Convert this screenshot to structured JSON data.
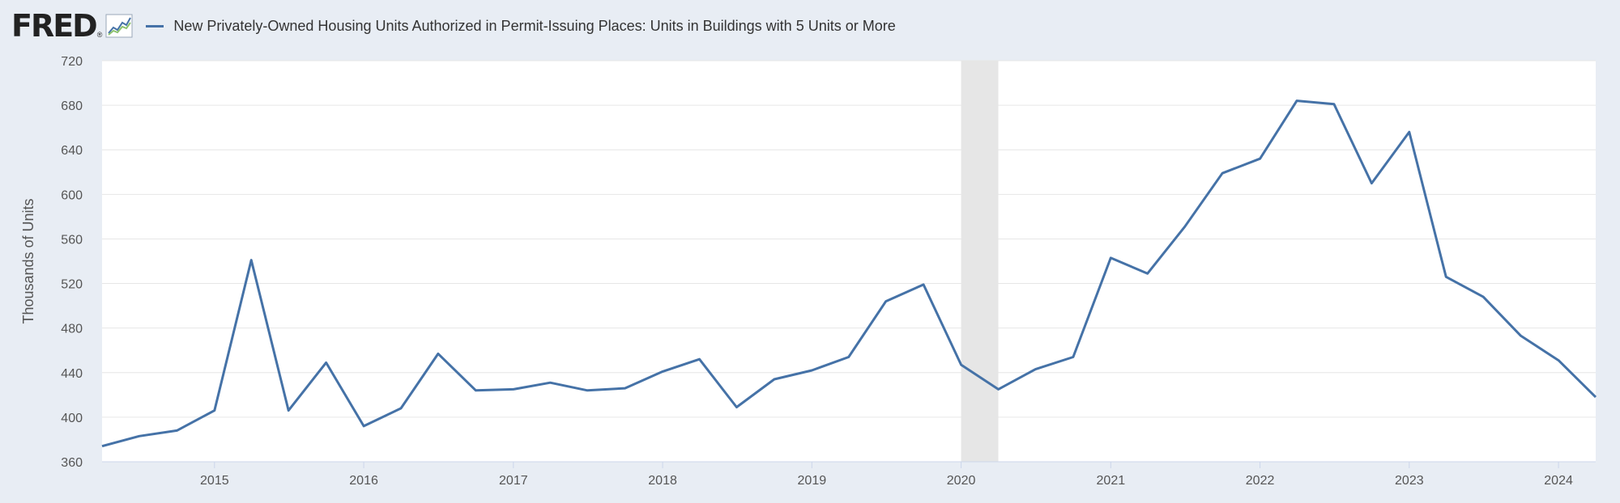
{
  "logo": {
    "text": "FRED",
    "registered": "®"
  },
  "chart_data": {
    "type": "line",
    "title": "",
    "ylabel": "Thousands of Units",
    "xlabel": "",
    "ylim": [
      360,
      720
    ],
    "xlim": [
      "2014-04-01",
      "2024-04-01"
    ],
    "yticks": [
      360,
      400,
      440,
      480,
      520,
      560,
      600,
      640,
      680,
      720
    ],
    "xticks": [
      "2015",
      "2016",
      "2017",
      "2018",
      "2019",
      "2020",
      "2021",
      "2022",
      "2023",
      "2024"
    ],
    "grid": "horizontal",
    "legend_position": "top-left",
    "line_color": "#4572a7",
    "recession_color": "#e6e6e6",
    "recessions": [
      [
        "2020-01-01",
        "2020-04-01"
      ]
    ],
    "series": [
      {
        "name": "New Privately-Owned Housing Units Authorized in Permit-Issuing Places: Units in Buildings with 5 Units or More",
        "x": [
          "2014-04-01",
          "2014-07-01",
          "2014-10-01",
          "2015-01-01",
          "2015-04-01",
          "2015-07-01",
          "2015-10-01",
          "2016-01-01",
          "2016-04-01",
          "2016-07-01",
          "2016-10-01",
          "2017-01-01",
          "2017-04-01",
          "2017-07-01",
          "2017-10-01",
          "2018-01-01",
          "2018-04-01",
          "2018-07-01",
          "2018-10-01",
          "2019-01-01",
          "2019-04-01",
          "2019-07-01",
          "2019-10-01",
          "2020-01-01",
          "2020-04-01",
          "2020-07-01",
          "2020-10-01",
          "2021-01-01",
          "2021-04-01",
          "2021-07-01",
          "2021-10-01",
          "2022-01-01",
          "2022-04-01",
          "2022-07-01",
          "2022-10-01",
          "2023-01-01",
          "2023-04-01",
          "2023-07-01",
          "2023-10-01",
          "2024-01-01",
          "2024-04-01"
        ],
        "values": [
          374,
          383,
          388,
          406,
          541,
          406,
          449,
          392,
          408,
          457,
          424,
          425,
          431,
          424,
          426,
          441,
          452,
          409,
          434,
          442,
          454,
          504,
          519,
          447,
          425,
          443,
          454,
          543,
          529,
          571,
          619,
          632,
          684,
          681,
          610,
          656,
          526,
          508,
          473,
          451,
          418
        ]
      }
    ]
  }
}
